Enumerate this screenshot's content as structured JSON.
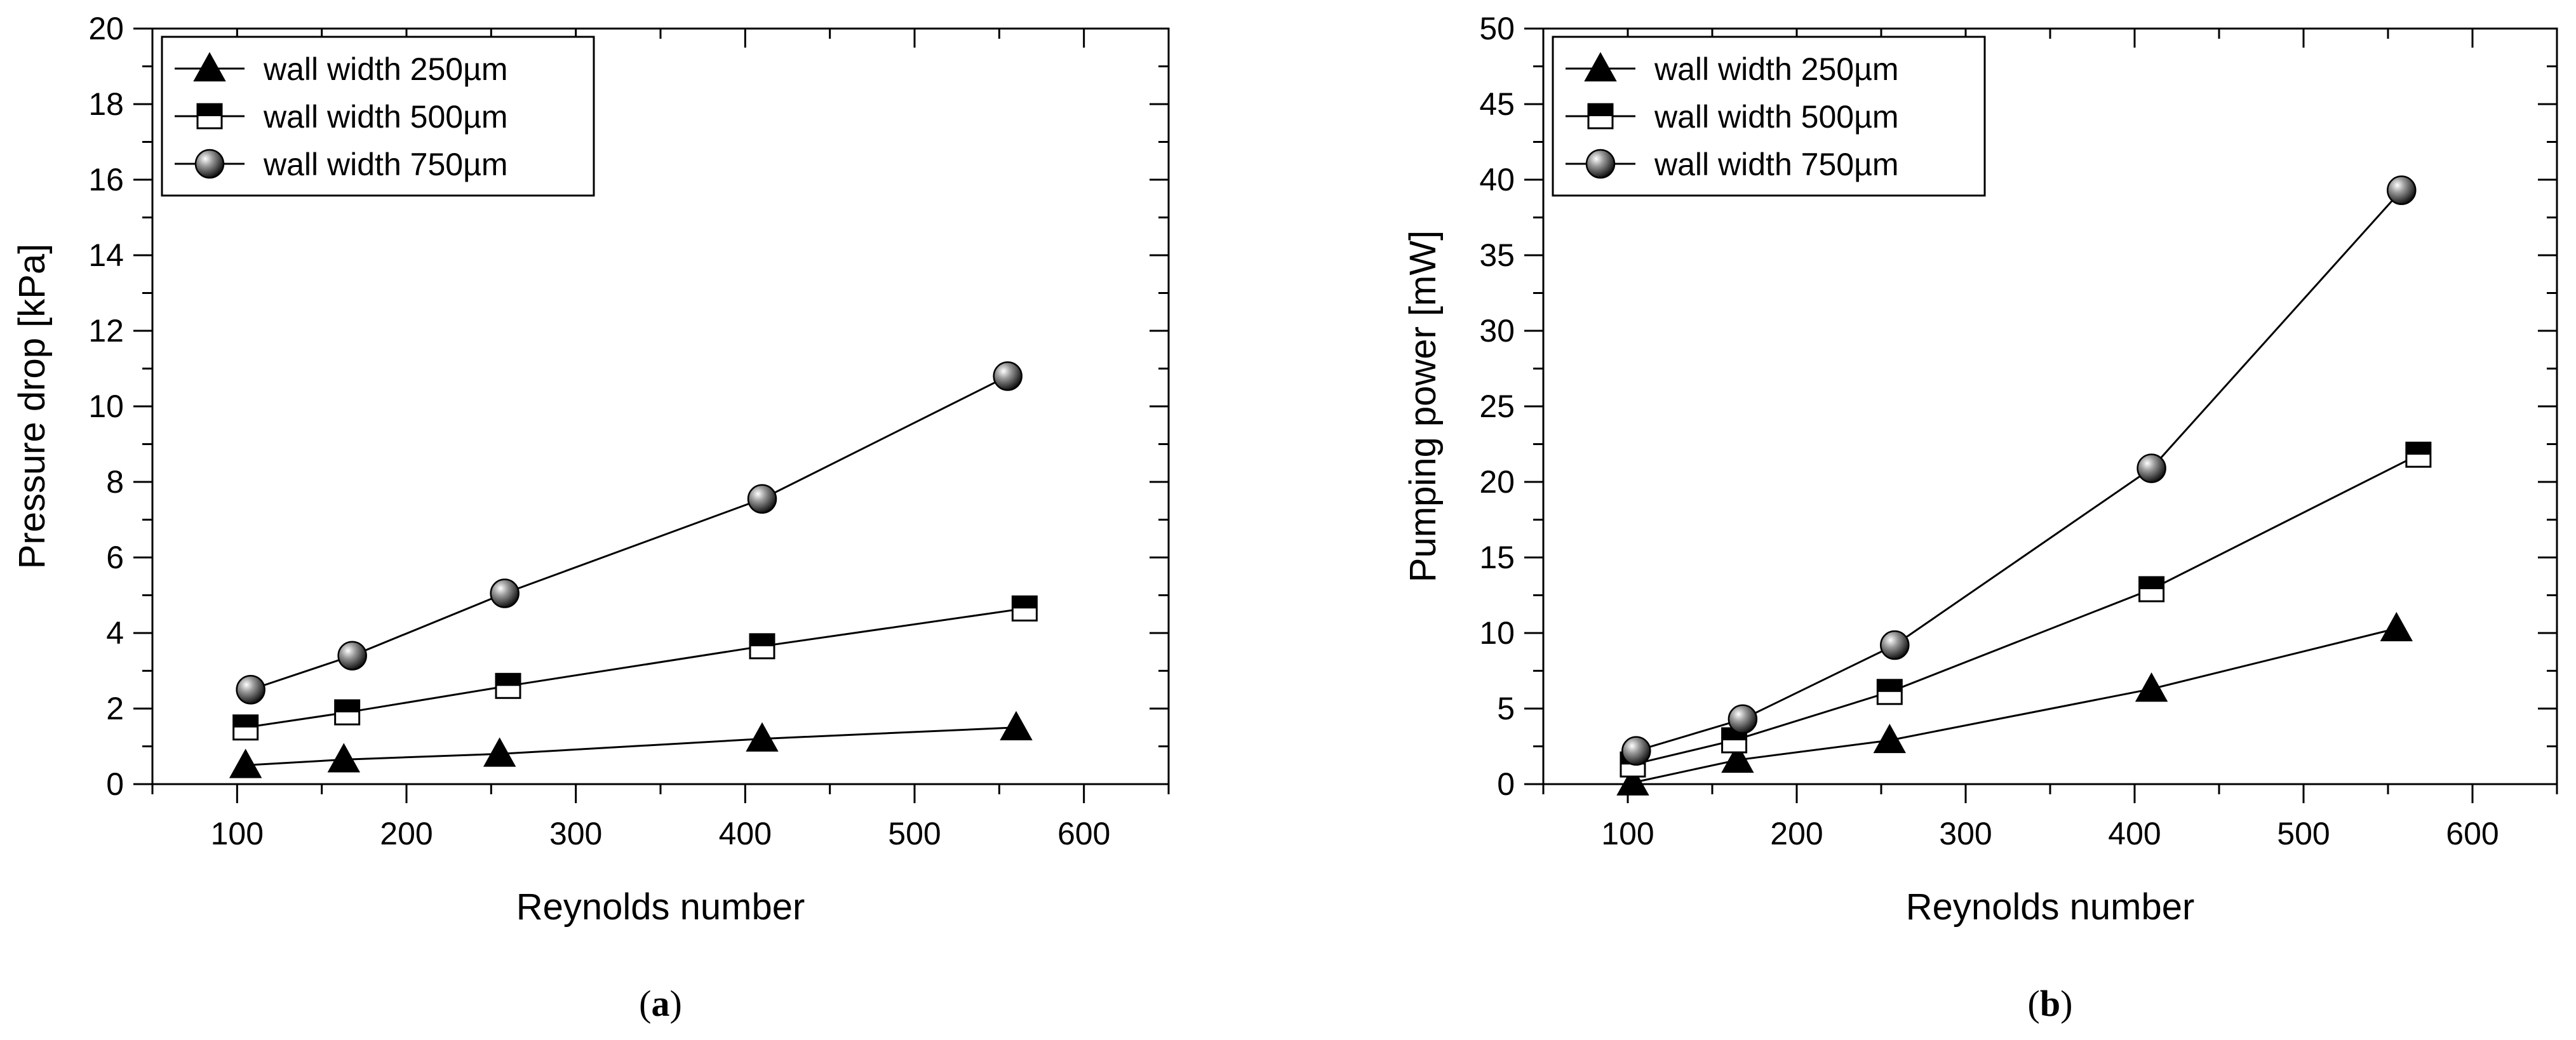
{
  "chart_data": [
    {
      "type": "line",
      "panel_label": "a",
      "xlabel": "Reynolds number",
      "ylabel": "Pressure drop [kPa]",
      "xlim": [
        50,
        650
      ],
      "ylim": [
        0,
        20
      ],
      "x_ticks": [
        100,
        200,
        300,
        400,
        500,
        600
      ],
      "y_ticks": [
        0,
        2,
        4,
        6,
        8,
        10,
        12,
        14,
        16,
        18,
        20
      ],
      "legend_position": "top-left",
      "series": [
        {
          "name": "wall width 250µm",
          "marker": "triangle",
          "x": [
            105,
            163,
            255,
            410,
            560
          ],
          "y": [
            0.5,
            0.65,
            0.8,
            1.2,
            1.5
          ]
        },
        {
          "name": "wall width 500µm",
          "marker": "half-square",
          "x": [
            105,
            165,
            260,
            410,
            565
          ],
          "y": [
            1.5,
            1.9,
            2.6,
            3.65,
            4.65
          ]
        },
        {
          "name": "wall width 750µm",
          "marker": "sphere",
          "x": [
            108,
            168,
            258,
            410,
            555
          ],
          "y": [
            2.5,
            3.4,
            5.05,
            7.55,
            10.8
          ]
        }
      ]
    },
    {
      "type": "line",
      "panel_label": "b",
      "xlabel": "Reynolds number",
      "ylabel": "Pumping power [mW]",
      "xlim": [
        50,
        650
      ],
      "ylim": [
        0,
        50
      ],
      "x_ticks": [
        100,
        200,
        300,
        400,
        500,
        600
      ],
      "y_ticks": [
        0,
        5,
        10,
        15,
        20,
        25,
        30,
        35,
        40,
        45,
        50
      ],
      "legend_position": "top-left",
      "series": [
        {
          "name": "wall width 250µm",
          "marker": "triangle",
          "x": [
            103,
            165,
            255,
            410,
            555
          ],
          "y": [
            0.1,
            1.6,
            2.9,
            6.3,
            10.3
          ]
        },
        {
          "name": "wall width 500µm",
          "marker": "half-square",
          "x": [
            103,
            163,
            255,
            410,
            568
          ],
          "y": [
            1.3,
            2.9,
            6.1,
            12.9,
            21.8
          ]
        },
        {
          "name": "wall width 750µm",
          "marker": "sphere",
          "x": [
            105,
            168,
            258,
            410,
            558
          ],
          "y": [
            2.2,
            4.3,
            9.2,
            20.9,
            39.3
          ]
        }
      ]
    }
  ]
}
